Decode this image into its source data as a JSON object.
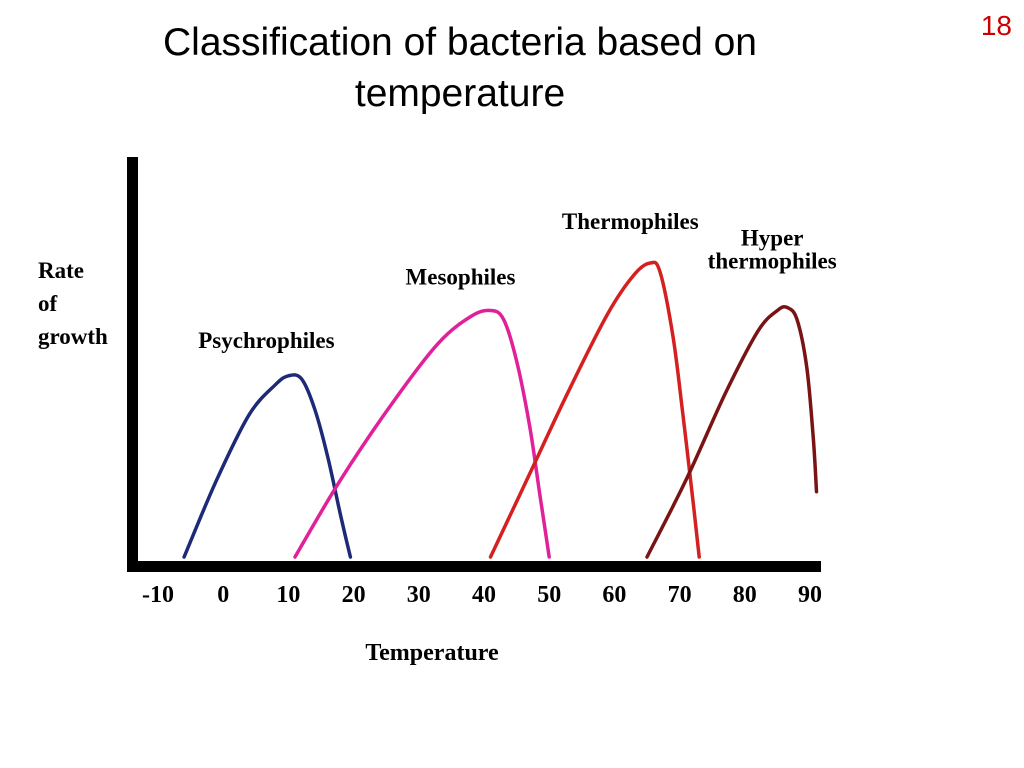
{
  "slide": {
    "title_line1": "Classification of bacteria based on",
    "title_line2": "temperature",
    "page_number": "18"
  },
  "chart_data": {
    "type": "line",
    "ylabel": [
      "Rate",
      "of",
      "growth"
    ],
    "xlabel": "Temperature",
    "x_ticks": [
      "-10",
      "0",
      "10",
      "20",
      "30",
      "40",
      "50",
      "60",
      "70",
      "80",
      "90"
    ],
    "x_tick_values": [
      -10,
      0,
      10,
      20,
      30,
      40,
      50,
      60,
      70,
      80,
      90
    ],
    "xlim": [
      -12,
      90
    ],
    "ylim": [
      0,
      1
    ],
    "grid": false,
    "series": [
      {
        "name": "Psychrophiles",
        "label_lines": [
          "Psychrophiles"
        ],
        "color": "#1c2a78",
        "x": [
          -6,
          -1,
          4,
          8,
          10,
          12,
          14,
          16,
          18,
          19.5
        ],
        "y": [
          0,
          0.26,
          0.48,
          0.58,
          0.61,
          0.6,
          0.5,
          0.34,
          0.14,
          0
        ]
      },
      {
        "name": "Mesophiles",
        "label_lines": [
          "Mesophiles"
        ],
        "color": "#e0219a",
        "x": [
          11,
          18,
          26,
          33,
          38,
          41,
          43,
          45,
          47,
          48.5,
          50
        ],
        "y": [
          0,
          0.26,
          0.52,
          0.72,
          0.81,
          0.83,
          0.8,
          0.66,
          0.44,
          0.22,
          0
        ]
      },
      {
        "name": "Thermophiles",
        "label_lines": [
          "Thermophiles"
        ],
        "color": "#d42020",
        "x": [
          41,
          47,
          53,
          59,
          63,
          65.5,
          67,
          69,
          70.5,
          72,
          73
        ],
        "y": [
          0,
          0.28,
          0.56,
          0.82,
          0.95,
          0.99,
          0.96,
          0.74,
          0.48,
          0.2,
          0
        ]
      },
      {
        "name": "Hyper thermophiles",
        "label_lines": [
          "Hyper",
          "thermophiles"
        ],
        "color": "#7a1414",
        "x": [
          65,
          71,
          77,
          82,
          85,
          86.5,
          88,
          89.5,
          90.5,
          91
        ],
        "y": [
          0,
          0.26,
          0.55,
          0.76,
          0.83,
          0.84,
          0.8,
          0.64,
          0.4,
          0.22
        ]
      }
    ]
  }
}
